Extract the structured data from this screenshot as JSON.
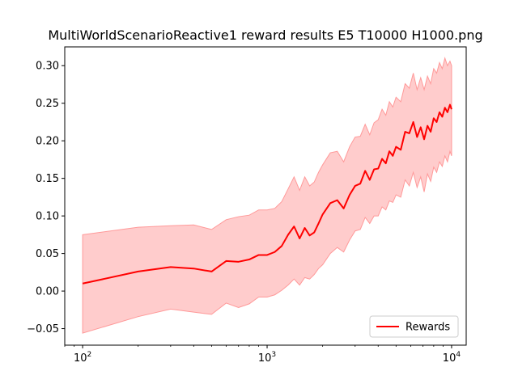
{
  "chart_data": {
    "type": "line",
    "title": "MultiWorldScenarioReactive1 reward results E5 T10000 H1000.png",
    "xlabel": "",
    "ylabel": "",
    "xscale": "log",
    "xlim": [
      80,
      12000
    ],
    "ylim": [
      -0.072,
      0.325
    ],
    "x_ticks": [
      {
        "value": 100,
        "base": "10",
        "exp": "2"
      },
      {
        "value": 1000,
        "base": "10",
        "exp": "3"
      },
      {
        "value": 10000,
        "base": "10",
        "exp": "4"
      }
    ],
    "y_ticks": [
      {
        "value": -0.05,
        "label": "−0.05"
      },
      {
        "value": 0.0,
        "label": "0.00"
      },
      {
        "value": 0.05,
        "label": "0.05"
      },
      {
        "value": 0.1,
        "label": "0.10"
      },
      {
        "value": 0.15,
        "label": "0.15"
      },
      {
        "value": 0.2,
        "label": "0.20"
      },
      {
        "value": 0.25,
        "label": "0.25"
      },
      {
        "value": 0.3,
        "label": "0.30"
      }
    ],
    "grid": false,
    "legend_position": "lower-right",
    "series": [
      {
        "name": "Rewards",
        "color": "#ff0000",
        "band_color": "#ffcccc",
        "band_edge_color": "#ff9999",
        "x": [
          100,
          200,
          300,
          400,
          500,
          600,
          700,
          800,
          900,
          1000,
          1100,
          1200,
          1300,
          1400,
          1500,
          1600,
          1700,
          1800,
          1900,
          2000,
          2200,
          2400,
          2600,
          2800,
          3000,
          3200,
          3400,
          3600,
          3800,
          4000,
          4200,
          4400,
          4600,
          4800,
          5000,
          5300,
          5600,
          5900,
          6200,
          6500,
          6800,
          7100,
          7400,
          7700,
          8000,
          8300,
          8600,
          8900,
          9200,
          9500,
          9800,
          10000
        ],
        "y": [
          0.01,
          0.026,
          0.032,
          0.03,
          0.026,
          0.04,
          0.039,
          0.042,
          0.048,
          0.048,
          0.052,
          0.06,
          0.075,
          0.086,
          0.07,
          0.084,
          0.074,
          0.078,
          0.09,
          0.102,
          0.117,
          0.121,
          0.11,
          0.128,
          0.14,
          0.143,
          0.16,
          0.148,
          0.162,
          0.163,
          0.176,
          0.17,
          0.186,
          0.18,
          0.192,
          0.188,
          0.212,
          0.21,
          0.225,
          0.205,
          0.218,
          0.202,
          0.22,
          0.212,
          0.23,
          0.225,
          0.238,
          0.232,
          0.244,
          0.238,
          0.248,
          0.242
        ],
        "lower": [
          -0.056,
          -0.034,
          -0.024,
          -0.028,
          -0.031,
          -0.016,
          -0.022,
          -0.017,
          -0.008,
          -0.008,
          -0.005,
          0.001,
          0.008,
          0.016,
          0.008,
          0.018,
          0.016,
          0.022,
          0.03,
          0.035,
          0.05,
          0.058,
          0.052,
          0.068,
          0.08,
          0.082,
          0.098,
          0.09,
          0.1,
          0.1,
          0.112,
          0.108,
          0.12,
          0.118,
          0.128,
          0.125,
          0.148,
          0.14,
          0.158,
          0.138,
          0.152,
          0.132,
          0.156,
          0.146,
          0.165,
          0.158,
          0.172,
          0.166,
          0.18,
          0.172,
          0.186,
          0.18
        ],
        "upper": [
          0.075,
          0.085,
          0.087,
          0.088,
          0.082,
          0.095,
          0.099,
          0.101,
          0.108,
          0.108,
          0.11,
          0.119,
          0.136,
          0.152,
          0.134,
          0.152,
          0.14,
          0.145,
          0.158,
          0.168,
          0.184,
          0.186,
          0.172,
          0.192,
          0.205,
          0.206,
          0.222,
          0.208,
          0.224,
          0.228,
          0.242,
          0.234,
          0.252,
          0.245,
          0.258,
          0.252,
          0.276,
          0.27,
          0.29,
          0.268,
          0.284,
          0.268,
          0.286,
          0.276,
          0.296,
          0.29,
          0.304,
          0.296,
          0.31,
          0.3,
          0.306,
          0.3
        ]
      }
    ]
  }
}
